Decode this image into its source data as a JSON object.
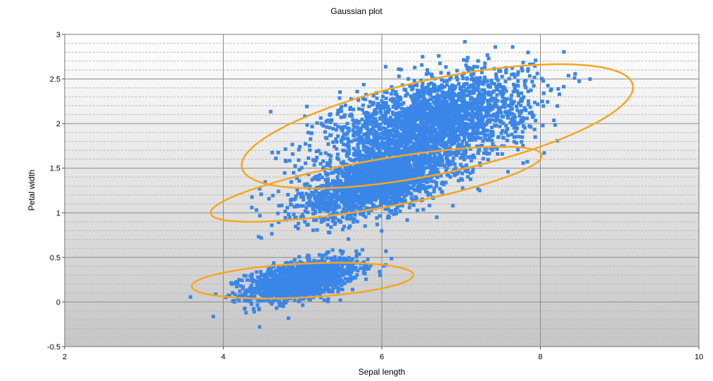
{
  "chart_data": {
    "type": "scatter",
    "title": "Gaussian plot",
    "xlabel": "Sepal length",
    "ylabel": "Petal width",
    "xlim": [
      2,
      10
    ],
    "ylim": [
      -0.5,
      3
    ],
    "xticks": [
      2,
      4,
      6,
      8,
      10
    ],
    "yticks": [
      -0.5,
      0,
      0.5,
      1,
      1.5,
      2,
      2.5,
      3
    ],
    "xtick_labels": [
      "2",
      "4",
      "6",
      "8",
      "10"
    ],
    "ytick_labels": [
      "-0.5",
      "0",
      "0.5",
      "1",
      "1.5",
      "2",
      "2.5",
      "3"
    ],
    "grid": true,
    "marker_color": "#3a86e8",
    "ellipse_color": "#f5a623",
    "clusters": [
      {
        "mean": [
          5.0,
          0.25
        ],
        "std": [
          0.35,
          0.12
        ],
        "corr": 0.5,
        "count": 1400,
        "ellipse": {
          "center": [
            5.0,
            0.24
          ],
          "half_width": 1.4,
          "half_height": 0.19,
          "angle_deg": 3
        }
      },
      {
        "mean": [
          5.9,
          1.32
        ],
        "std": [
          0.48,
          0.19
        ],
        "corr": 0.55,
        "count": 1800,
        "ellipse": {
          "center": [
            5.93,
            1.32
          ],
          "half_width": 2.12,
          "half_height": 0.27,
          "angle_deg": 10
        }
      },
      {
        "mean": [
          6.6,
          2.0
        ],
        "std": [
          0.62,
          0.28
        ],
        "corr": 0.45,
        "count": 2600,
        "ellipse": {
          "center": [
            6.7,
            1.97
          ],
          "half_width": 2.52,
          "half_height": 0.53,
          "angle_deg": 12
        }
      }
    ]
  }
}
